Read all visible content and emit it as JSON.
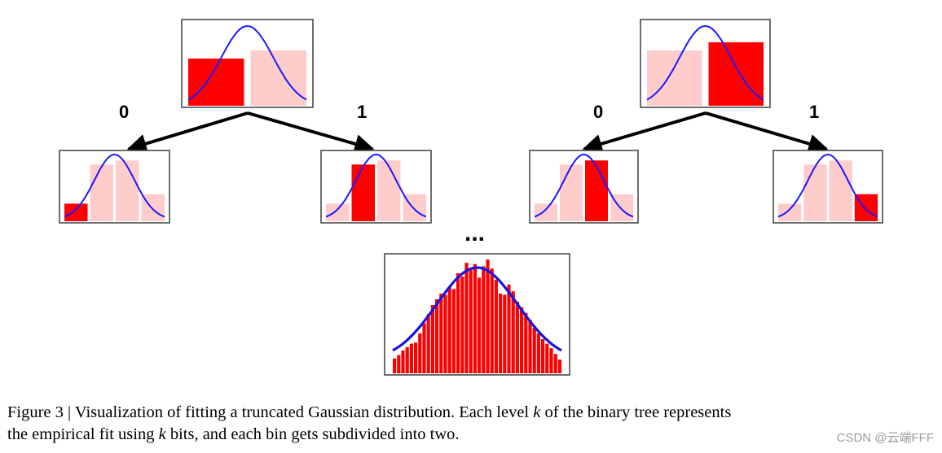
{
  "tree": {
    "left_parent": {
      "bars": [
        {
          "level": 0.58,
          "style": "strong"
        },
        {
          "level": 0.68,
          "style": "faint"
        }
      ]
    },
    "right_parent": {
      "bars": [
        {
          "level": 0.68,
          "style": "faint"
        },
        {
          "level": 0.78,
          "style": "strong"
        }
      ]
    },
    "children": [
      {
        "bars": [
          {
            "level": 0.26,
            "style": "strong"
          },
          {
            "level": 0.84,
            "style": "faint"
          },
          {
            "level": 0.9,
            "style": "faint"
          },
          {
            "level": 0.4,
            "style": "faint"
          }
        ]
      },
      {
        "bars": [
          {
            "level": 0.26,
            "style": "faint"
          },
          {
            "level": 0.84,
            "style": "strong"
          },
          {
            "level": 0.9,
            "style": "faint"
          },
          {
            "level": 0.4,
            "style": "faint"
          }
        ]
      },
      {
        "bars": [
          {
            "level": 0.26,
            "style": "faint"
          },
          {
            "level": 0.84,
            "style": "faint"
          },
          {
            "level": 0.9,
            "style": "strong"
          },
          {
            "level": 0.4,
            "style": "faint"
          }
        ]
      },
      {
        "bars": [
          {
            "level": 0.26,
            "style": "faint"
          },
          {
            "level": 0.84,
            "style": "faint"
          },
          {
            "level": 0.9,
            "style": "faint"
          },
          {
            "level": 0.4,
            "style": "strong"
          }
        ]
      }
    ],
    "edge_labels": {
      "left_zero": "0",
      "left_one": "1",
      "right_zero": "0",
      "right_one": "1"
    },
    "ellipsis": "...",
    "final_histogram": {
      "bars": [
        0.13,
        0.16,
        0.2,
        0.23,
        0.26,
        0.27,
        0.35,
        0.44,
        0.52,
        0.6,
        0.65,
        0.7,
        0.69,
        0.76,
        0.74,
        0.88,
        0.85,
        0.97,
        0.91,
        0.96,
        0.84,
        0.94,
        1.0,
        0.92,
        0.82,
        0.7,
        0.69,
        0.78,
        0.72,
        0.63,
        0.58,
        0.53,
        0.47,
        0.4,
        0.35,
        0.3,
        0.26,
        0.22,
        0.17,
        0.12
      ]
    }
  },
  "caption": {
    "line1_pre": "Figure 3 | Visualization of fitting a truncated Gaussian distribution. Each level ",
    "line1_var": "k",
    "line1_post": " of the binary tree represents",
    "line2_pre": "the empirical fit using ",
    "line2_var": "k",
    "line2_post": " bits, and each bin gets subdivided into two."
  },
  "watermark": "CSDN @云端FFF",
  "colors": {
    "strong_bar": "#ff0000",
    "faint_bar": "#ffcccc",
    "curve": "#1a1aff"
  }
}
